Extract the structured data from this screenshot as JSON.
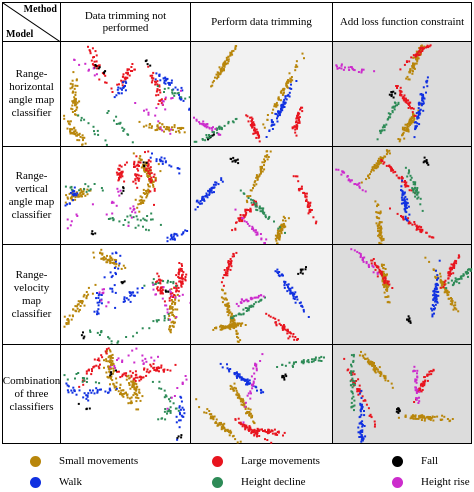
{
  "header": {
    "method": "Method",
    "model": "Model",
    "columns": [
      "Data trimming not performed",
      "Perform data trimming",
      "Add loss function constraint"
    ]
  },
  "rows": [
    "Range-horizontal angle map classifier",
    "Range-vertical angle map classifier",
    "Range-velocity map classifier",
    "Combination of three classifiers"
  ],
  "legend": [
    {
      "name": "Small movements",
      "color": "#b8860b"
    },
    {
      "name": "Large movements",
      "color": "#e8141e"
    },
    {
      "name": "Fall",
      "color": "#000000"
    },
    {
      "name": "Walk",
      "color": "#1030e0"
    },
    {
      "name": "Height decline",
      "color": "#2e8b57"
    },
    {
      "name": "Height rise",
      "color": "#cc2ccc"
    }
  ]
}
